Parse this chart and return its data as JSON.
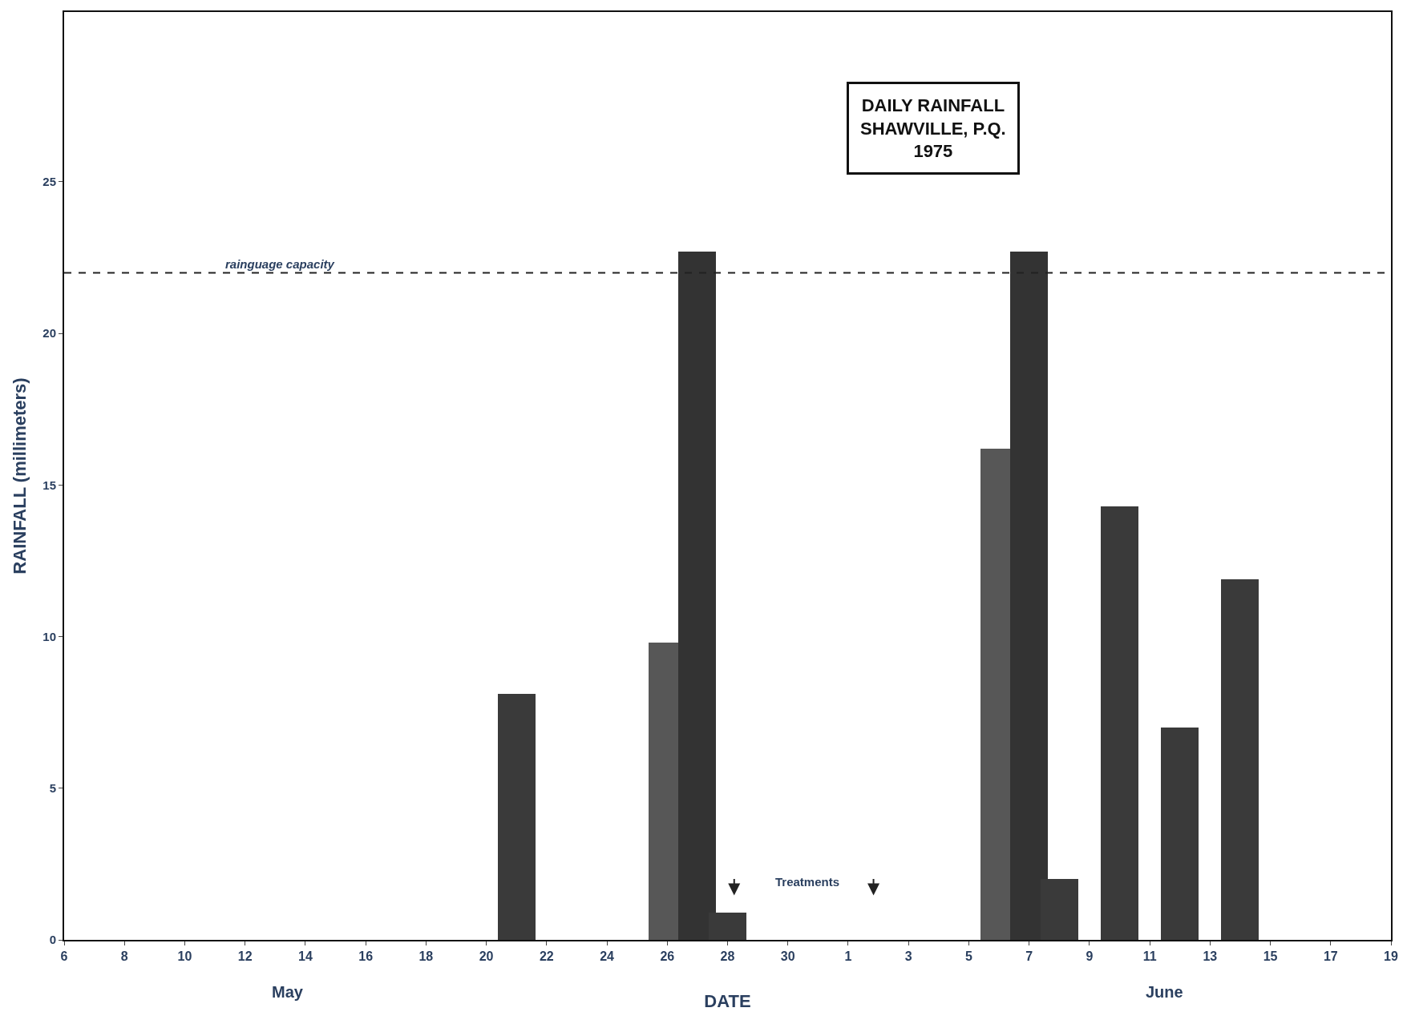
{
  "chart_data": {
    "type": "bar",
    "title": "DAILY RAINFALL\nSHAWVILLE, P.Q.\n1975",
    "xlabel": "DATE",
    "ylabel": "RAINFALL (millimeters)",
    "x": [
      "1975-05-21",
      "1975-05-26",
      "1975-05-27",
      "1975-05-28",
      "1975-06-06",
      "1975-06-07",
      "1975-06-08",
      "1975-06-10",
      "1975-06-12",
      "1975-06-14"
    ],
    "values": [
      8.1,
      9.8,
      22.7,
      0.9,
      16.2,
      22.7,
      2.0,
      14.3,
      7.0,
      11.9
    ],
    "colors": [
      "#3a3a3a",
      "#575757",
      "#333333",
      "#3a3a3a",
      "#575757",
      "#333333",
      "#3a3a3a",
      "#3a3a3a",
      "#3a3a3a",
      "#3a3a3a"
    ],
    "xlim": [
      "1975-05-06",
      "1975-06-19"
    ],
    "xticks": [
      {
        "value": "1975-05-06",
        "label": "6"
      },
      {
        "value": "1975-05-08",
        "label": "8"
      },
      {
        "value": "1975-05-10",
        "label": "10"
      },
      {
        "value": "1975-05-12",
        "label": "12"
      },
      {
        "value": "1975-05-14",
        "label": "14"
      },
      {
        "value": "1975-05-16",
        "label": "16"
      },
      {
        "value": "1975-05-18",
        "label": "18"
      },
      {
        "value": "1975-05-20",
        "label": "20"
      },
      {
        "value": "1975-05-22",
        "label": "22"
      },
      {
        "value": "1975-05-24",
        "label": "24"
      },
      {
        "value": "1975-05-26",
        "label": "26"
      },
      {
        "value": "1975-05-28",
        "label": "28"
      },
      {
        "value": "1975-05-30",
        "label": "30"
      },
      {
        "value": "1975-06-01",
        "label": "1"
      },
      {
        "value": "1975-06-03",
        "label": "3"
      },
      {
        "value": "1975-06-05",
        "label": "5"
      },
      {
        "value": "1975-06-07",
        "label": "7"
      },
      {
        "value": "1975-06-09",
        "label": "9"
      },
      {
        "value": "1975-06-11",
        "label": "11"
      },
      {
        "value": "1975-06-13",
        "label": "13"
      },
      {
        "value": "1975-06-15",
        "label": "15"
      },
      {
        "value": "1975-06-17",
        "label": "17"
      },
      {
        "value": "1975-06-19",
        "label": "19"
      }
    ],
    "ylim": [
      0,
      30.6
    ],
    "yticks": [
      0,
      5,
      10,
      15,
      20,
      25
    ],
    "legend": false,
    "ref_lines": [
      {
        "axis": "y",
        "value": 22,
        "label": "rainguage capacity",
        "color": "#222222",
        "line_style": "dashed"
      }
    ],
    "annotations": [
      "May",
      "June",
      "Treatments"
    ]
  }
}
